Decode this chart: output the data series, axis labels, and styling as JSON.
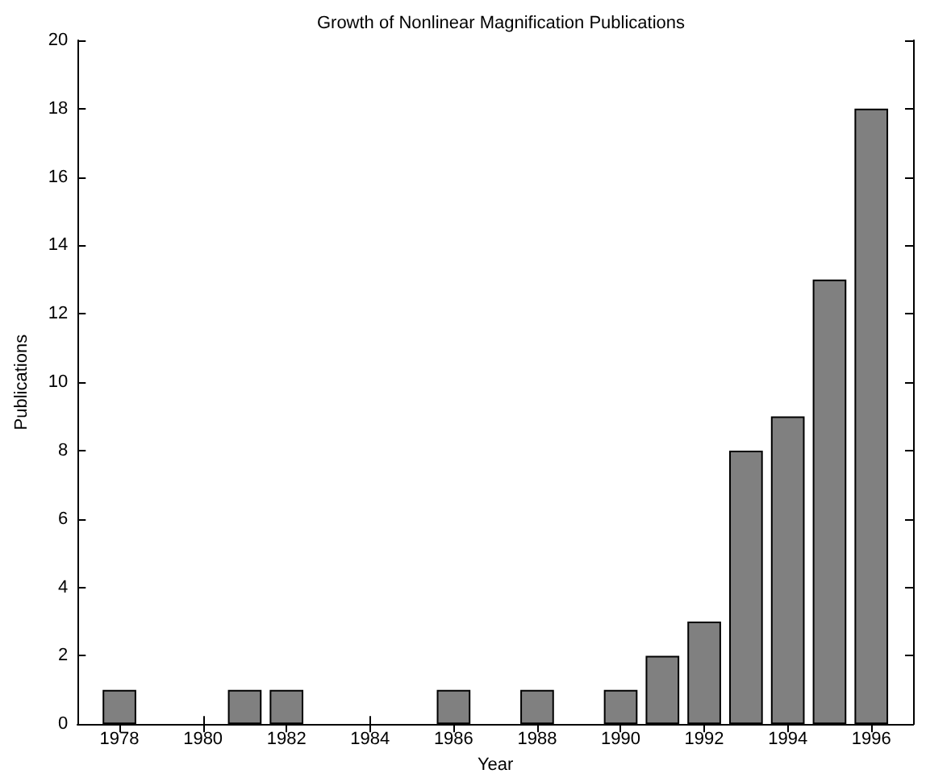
{
  "chart_data": {
    "type": "bar",
    "title": "Growth of Nonlinear Magnification Publications",
    "xlabel": "Year",
    "ylabel": "Publications",
    "x": [
      1978,
      1979,
      1980,
      1981,
      1982,
      1983,
      1984,
      1985,
      1986,
      1987,
      1988,
      1989,
      1990,
      1991,
      1992,
      1993,
      1994,
      1995,
      1996
    ],
    "values": [
      1,
      0,
      0,
      1,
      1,
      0,
      0,
      0,
      1,
      0,
      1,
      0,
      1,
      2,
      3,
      8,
      9,
      13,
      18
    ],
    "color": "#808080",
    "xlim": [
      1977,
      1997
    ],
    "xticks": [
      1978,
      1980,
      1982,
      1984,
      1986,
      1988,
      1990,
      1992,
      1994,
      1996
    ],
    "ylim": [
      0,
      20
    ],
    "yticks": [
      0,
      2,
      4,
      6,
      8,
      10,
      12,
      14,
      16,
      18,
      20
    ],
    "grid": false
  }
}
